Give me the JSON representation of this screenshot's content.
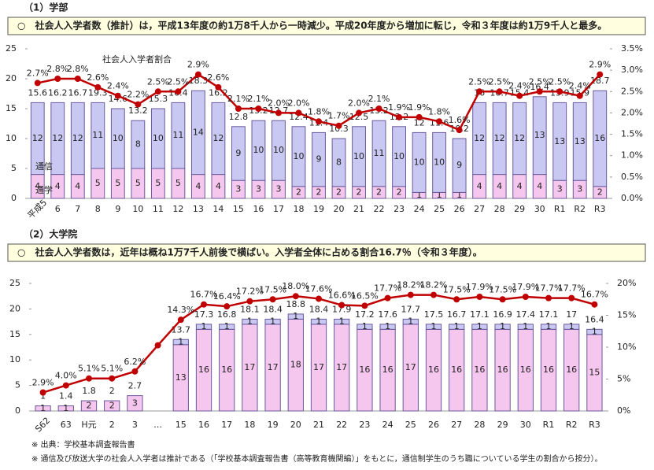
{
  "chart_data": [
    {
      "type": "bar",
      "title": "（1）学部",
      "subtitle": "○　社会人入学者数（推計）は，平成13年度の約1万8千人から一時減少。平成20年度から増加に転じ，令和３年度は約1万9千人と最多。",
      "categories": [
        "平成5",
        "6",
        "7",
        "8",
        "9",
        "10",
        "11",
        "12",
        "13",
        "14",
        "15",
        "16",
        "17",
        "18",
        "19",
        "20",
        "21",
        "22",
        "23",
        "24",
        "25",
        "26",
        "27",
        "28",
        "29",
        "30",
        "R1",
        "R2",
        "R3"
      ],
      "series": [
        {
          "name": "通学",
          "color": "#f5c6ee",
          "values": [
            4,
            4,
            4,
            5,
            5,
            5,
            5,
            5,
            4,
            4,
            3,
            3,
            3,
            2,
            2,
            2,
            2,
            2,
            2,
            1,
            1,
            1,
            4,
            4,
            4,
            4,
            3,
            3,
            2
          ]
        },
        {
          "name": "通信",
          "color": "#c8c8f2",
          "values": [
            12,
            12,
            12,
            11,
            10,
            8,
            10,
            11,
            14,
            12,
            9,
            10,
            10,
            10,
            9,
            8,
            10,
            11,
            10,
            10,
            10,
            9,
            12,
            12,
            12,
            13,
            13,
            13,
            16
          ]
        },
        {
          "name": "社会人入学者割合",
          "color": "#c00000",
          "axis": "y2",
          "type": "line",
          "values": [
            2.7,
            2.8,
            2.8,
            2.6,
            2.4,
            2.2,
            2.5,
            2.5,
            2.9,
            2.6,
            2.1,
            2.1,
            2.0,
            2.0,
            1.8,
            1.7,
            2.0,
            2.1,
            1.9,
            1.9,
            1.8,
            1.6,
            2.5,
            2.5,
            2.4,
            2.5,
            2.5,
            2.4,
            2.9
          ],
          "value_labels": [
            "2.7%",
            "2.8%",
            "2.8%",
            "2.6%",
            "2.4%",
            "2.2%",
            "2.5%",
            "2.5%",
            "2.9%",
            "2.6%",
            "2.1%",
            "2.1%",
            "2.0%",
            "2.0%",
            "1.8%",
            "1.7%",
            "2.0%",
            "2.1%",
            "1.9%",
            "1.9%",
            "1.8%",
            "1.6%",
            "2.5%",
            "2.5%",
            "2.4%",
            "2.5%",
            "2.5%",
            "2.4%",
            "2.9%"
          ]
        }
      ],
      "totals": [
        15.6,
        16.2,
        16.7,
        19.3,
        14.6,
        13.2,
        15.3,
        16.4,
        18.3,
        16.2,
        12.8,
        13.2,
        12.7,
        12.4,
        11.4,
        10.3,
        12.5,
        13.2,
        12.2,
        12.0,
        11.6,
        10.2,
        16.0,
        16.7,
        15.4,
        16.4,
        15.9,
        15.9,
        18.7
      ],
      "ylim": [
        0,
        25
      ],
      "yticks": [
        0,
        5,
        10,
        15,
        20,
        25
      ],
      "y2lim": [
        0,
        3.5
      ],
      "y2ticks": [
        {
          "value": 0,
          "label": "0.0%"
        },
        {
          "value": 0.5,
          "label": "0.5%"
        },
        {
          "value": 1,
          "label": "1.0%"
        },
        {
          "value": 1.5,
          "label": "1.5%"
        },
        {
          "value": 2,
          "label": "2.0%"
        },
        {
          "value": 2.5,
          "label": "2.5%"
        },
        {
          "value": 3,
          "label": "3.0%"
        },
        {
          "value": 3.5,
          "label": "3.5%"
        }
      ]
    },
    {
      "type": "bar",
      "title": "（2）大学院",
      "subtitle": "○　社会人入学者数は，近年は概ね1万7千人前後で横ばい。入学者全体に占める割合16.7％（令和３年度）。",
      "categories": [
        "S62",
        "63",
        "H元",
        "2",
        "3",
        "…",
        "15",
        "16",
        "17",
        "18",
        "19",
        "20",
        "21",
        "22",
        "23",
        "24",
        "25",
        "26",
        "27",
        "28",
        "29",
        "30",
        "R1",
        "R2",
        "R3"
      ],
      "series": [
        {
          "color": "#f5c6ee",
          "values": [
            1,
            1,
            2,
            2,
            3,
            null,
            13,
            16,
            16,
            17,
            17,
            18,
            17,
            17,
            16,
            16,
            17,
            16,
            16,
            16,
            16,
            16,
            16,
            16,
            15
          ]
        },
        {
          "color": "#c8c8f2",
          "values": [
            null,
            null,
            null,
            null,
            null,
            null,
            1,
            1,
            1,
            1,
            1,
            1,
            1,
            1,
            1,
            1,
            1,
            1,
            1,
            1,
            1,
            1,
            1,
            1,
            1
          ]
        },
        {
          "color": "#c00000",
          "axis": "y2",
          "type": "line",
          "values": [
            2.9,
            4.0,
            5.1,
            5.1,
            6.2,
            10.3,
            14.3,
            16.7,
            16.4,
            17.2,
            17.5,
            18.0,
            17.6,
            16.6,
            16.5,
            17.7,
            18.2,
            18.2,
            17.5,
            17.9,
            17.5,
            17.9,
            17.7,
            17.7,
            16.7
          ],
          "value_labels": [
            "2.9%",
            "4.0%",
            "5.1%",
            "5.1%",
            "6.2%",
            null,
            "14.3%",
            "16.7%",
            "16.4%",
            "17.2%",
            "17.5%",
            "18.0%",
            "17.6%",
            "16.6%",
            "16.5%",
            "17.7%",
            "18.2%",
            "18.2%",
            "17.5%",
            "17.9%",
            "17.5%",
            "17.9%",
            "17.7%",
            "17.7%",
            "16.7%"
          ]
        }
      ],
      "totals": [
        1.0,
        1.4,
        1.8,
        2.0,
        2.7,
        null,
        13.7,
        17.3,
        16.8,
        18.1,
        18.4,
        18.8,
        18.4,
        17.9,
        17.2,
        17.6,
        17.7,
        17.5,
        16.7,
        17.1,
        16.9,
        17.4,
        17.1,
        17.0,
        16.4
      ],
      "ylim": [
        0,
        25
      ],
      "yticks": [
        0,
        5,
        10,
        15,
        20,
        25
      ],
      "y2lim": [
        0,
        20
      ],
      "y2ticks": [
        {
          "value": 0,
          "label": "0%"
        },
        {
          "value": 5,
          "label": "5%"
        },
        {
          "value": 10,
          "label": "10%"
        },
        {
          "value": 15,
          "label": "15%"
        },
        {
          "value": 20,
          "label": "20%"
        }
      ]
    }
  ],
  "notes": [
    "※ 出典：学校基本調査報告書",
    "※ 通信及び放送大学の社会人入学者は推計である（「学校基本調査報告書（高等教育機関編）」をもとに，通信制学生のうち職についている学生の割合から按分）。"
  ]
}
